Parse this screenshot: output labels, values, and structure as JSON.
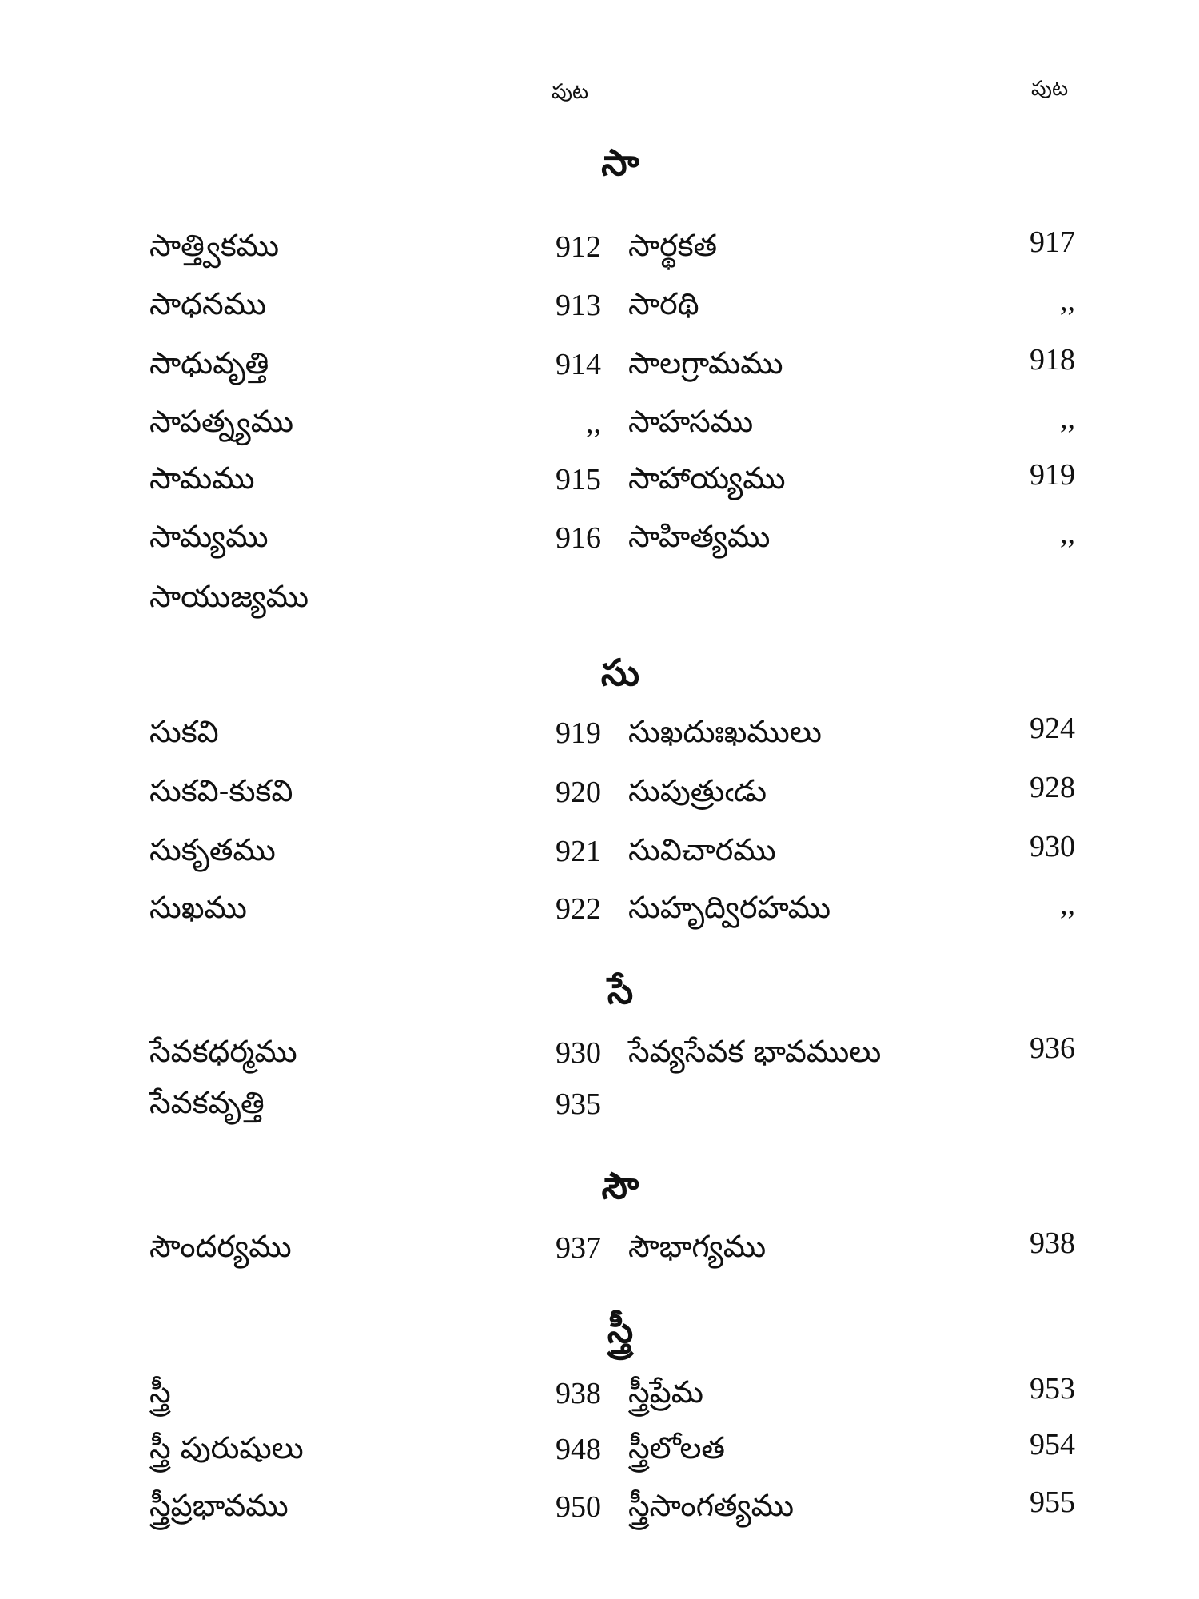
{
  "header": {
    "left_label": "పుట",
    "right_label": "పుట"
  },
  "sections": [
    {
      "heading": "సా",
      "left": [
        {
          "term": "సాత్త్వికము",
          "page": "912"
        },
        {
          "term": "సాధనము",
          "page": "913"
        },
        {
          "term": "సాధువృత్తి",
          "page": "914"
        },
        {
          "term": "సాపత్న్యము",
          "page": ",,"
        },
        {
          "term": "సామము",
          "page": "915"
        },
        {
          "term": "సామ్యము",
          "page": "916"
        },
        {
          "term": "సాయుజ్యము",
          "page": ""
        }
      ],
      "right": [
        {
          "term": "సార్థకత",
          "page": "917"
        },
        {
          "term": "సారథి",
          "page": ",,"
        },
        {
          "term": "సాలగ్రామము",
          "page": "918"
        },
        {
          "term": "సాహసము",
          "page": ",,"
        },
        {
          "term": "సాహాయ్యము",
          "page": "919"
        },
        {
          "term": "సాహిత్యము",
          "page": ",,"
        }
      ]
    },
    {
      "heading": "సు",
      "left": [
        {
          "term": "సుకవి",
          "page": "919"
        },
        {
          "term": "సుకవి-కుకవి",
          "page": "920"
        },
        {
          "term": "సుకృతము",
          "page": "921"
        },
        {
          "term": "సుఖము",
          "page": "922"
        }
      ],
      "right": [
        {
          "term": "సుఖదుఃఖములు",
          "page": "924"
        },
        {
          "term": "సుపుత్రుఁడు",
          "page": "928"
        },
        {
          "term": "సువిచారము",
          "page": "930"
        },
        {
          "term": "సుహృద్విరహము",
          "page": ",,"
        }
      ]
    },
    {
      "heading": "సే",
      "left": [
        {
          "term": "సేవకధర్మము",
          "page": "930"
        },
        {
          "term": "సేవకవృత్తి",
          "page": "935"
        }
      ],
      "right": [
        {
          "term": "సేవ్యసేవక భావములు",
          "page": "936"
        }
      ]
    },
    {
      "heading": "సౌ",
      "left": [
        {
          "term": "సౌందర్యము",
          "page": "937"
        }
      ],
      "right": [
        {
          "term": "సౌభాగ్యము",
          "page": "938"
        }
      ]
    },
    {
      "heading": "స్త్రీ",
      "left": [
        {
          "term": "స్త్రీ",
          "page": "938"
        },
        {
          "term": "స్త్రీ పురుషులు",
          "page": "948"
        },
        {
          "term": "స్త్రీప్రభావము",
          "page": "950"
        }
      ],
      "right": [
        {
          "term": "స్త్రీప్రేమ",
          "page": "953"
        },
        {
          "term": "స్త్రీలోలత",
          "page": "954"
        },
        {
          "term": "స్త్రీసాంగత్యము",
          "page": "955"
        }
      ]
    }
  ]
}
